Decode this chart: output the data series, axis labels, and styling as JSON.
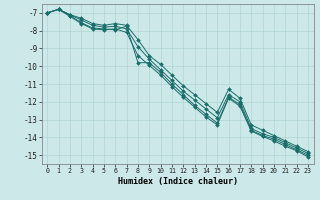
{
  "xlabel": "Humidex (Indice chaleur)",
  "background_color": "#cce8e8",
  "grid_color": "#aacfcf",
  "line_color": "#1a6e6a",
  "series": [
    {
      "x": [
        0,
        1,
        2,
        3,
        4,
        5,
        6,
        7,
        8,
        9,
        10,
        11,
        12,
        13,
        14,
        15,
        16,
        17,
        18,
        19,
        20,
        21,
        22,
        23
      ],
      "y": [
        -7.0,
        -6.8,
        -7.1,
        -7.4,
        -7.7,
        -7.8,
        -7.75,
        -7.9,
        -8.9,
        -9.6,
        -10.2,
        -10.8,
        -11.4,
        -11.9,
        -12.4,
        -12.9,
        -11.6,
        -12.0,
        -13.5,
        -13.8,
        -14.0,
        -14.3,
        -14.6,
        -14.9
      ]
    },
    {
      "x": [
        0,
        1,
        2,
        3,
        4,
        5,
        6,
        7,
        8,
        9,
        10,
        11,
        12,
        13,
        14,
        15,
        16,
        17,
        18,
        19,
        20,
        21,
        22,
        23
      ],
      "y": [
        -7.0,
        -6.8,
        -7.1,
        -7.3,
        -7.6,
        -7.7,
        -7.6,
        -7.7,
        -8.5,
        -9.4,
        -9.9,
        -10.5,
        -11.1,
        -11.6,
        -12.1,
        -12.6,
        -11.3,
        -11.8,
        -13.3,
        -13.6,
        -13.9,
        -14.2,
        -14.5,
        -14.8
      ]
    },
    {
      "x": [
        0,
        1,
        2,
        3,
        4,
        5,
        6,
        7,
        8,
        9,
        10,
        11,
        12,
        13,
        14,
        15,
        16,
        17,
        18,
        19,
        20,
        21,
        22,
        23
      ],
      "y": [
        -7.0,
        -6.8,
        -7.15,
        -7.55,
        -7.85,
        -7.9,
        -7.95,
        -7.75,
        -9.8,
        -9.8,
        -10.35,
        -11.0,
        -11.6,
        -12.2,
        -12.7,
        -13.2,
        -11.75,
        -12.15,
        -13.6,
        -13.9,
        -14.1,
        -14.4,
        -14.7,
        -15.0
      ]
    },
    {
      "x": [
        0,
        1,
        2,
        3,
        4,
        5,
        6,
        7,
        8,
        9,
        10,
        11,
        12,
        13,
        14,
        15,
        16,
        17,
        18,
        19,
        20,
        21,
        22,
        23
      ],
      "y": [
        -7.0,
        -6.8,
        -7.2,
        -7.6,
        -7.9,
        -7.95,
        -7.9,
        -8.1,
        -9.4,
        -9.95,
        -10.5,
        -11.15,
        -11.75,
        -12.3,
        -12.85,
        -13.3,
        -11.8,
        -12.25,
        -13.65,
        -13.95,
        -14.2,
        -14.5,
        -14.75,
        -15.1
      ]
    }
  ],
  "xlim": [
    -0.5,
    23.5
  ],
  "ylim": [
    -15.5,
    -6.5
  ],
  "xticks": [
    0,
    1,
    2,
    3,
    4,
    5,
    6,
    7,
    8,
    9,
    10,
    11,
    12,
    13,
    14,
    15,
    16,
    17,
    18,
    19,
    20,
    21,
    22,
    23
  ],
  "yticks": [
    -7,
    -8,
    -9,
    -10,
    -11,
    -12,
    -13,
    -14,
    -15
  ],
  "markersize": 2.0,
  "linewidth": 0.7
}
